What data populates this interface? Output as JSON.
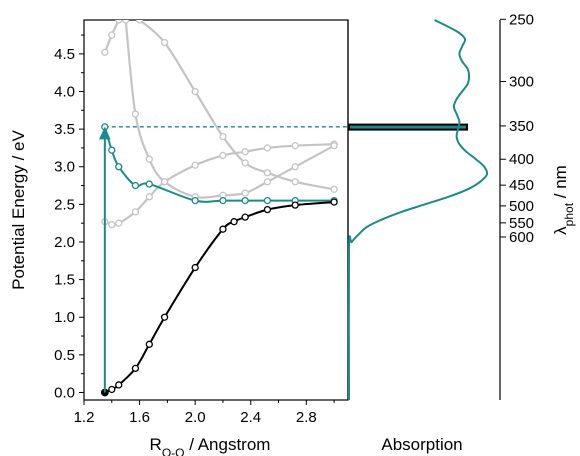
{
  "chart_data": [
    {
      "type": "line",
      "name_hidden": "",
      "xlabel_main": "R",
      "xlabel_sub": "O-O",
      "xlabel_rest": " / Angstrom",
      "ylabel": "Potential Energy / eV",
      "xlim": [
        1.2,
        3.1
      ],
      "ylim": [
        -0.1,
        4.95
      ],
      "x_ticks": [
        1.2,
        1.6,
        2.0,
        2.4,
        2.8
      ],
      "x_tick_labels": [
        "1.2",
        "1.6",
        "2.0",
        "2.4",
        "2.8"
      ],
      "y_ticks": [
        0.0,
        0.5,
        1.0,
        1.5,
        2.0,
        2.5,
        3.0,
        3.5,
        4.0,
        4.5
      ],
      "y_tick_labels": [
        "0.0",
        "0.5",
        "1.0",
        "1.5",
        "2.0",
        "2.5",
        "3.0",
        "3.5",
        "4.0",
        "4.5"
      ],
      "series": [
        {
          "color": "#000000",
          "x": [
            1.35,
            1.4,
            1.45,
            1.57,
            1.67,
            1.78,
            2.0,
            2.2,
            2.28,
            2.36,
            2.52,
            2.72,
            3.0
          ],
          "y": [
            0.0,
            0.04,
            0.1,
            0.32,
            0.64,
            1.0,
            1.66,
            2.17,
            2.27,
            2.33,
            2.43,
            2.49,
            2.53
          ]
        },
        {
          "color": "#1a8a8a",
          "x": [
            1.35,
            1.4,
            1.45,
            1.57,
            1.67,
            2.0,
            2.2,
            2.36,
            2.52,
            2.72,
            3.0
          ],
          "y": [
            3.53,
            3.22,
            3.0,
            2.75,
            2.77,
            2.55,
            2.55,
            2.55,
            2.55,
            2.55,
            2.55
          ]
        },
        {
          "color": "#c4c4c4",
          "x": [
            1.35,
            1.4,
            1.45,
            1.57,
            1.67,
            1.78,
            2.0,
            2.2,
            2.36,
            2.52,
            2.72,
            3.0
          ],
          "y": [
            2.27,
            2.23,
            2.25,
            2.4,
            2.6,
            2.8,
            3.02,
            3.15,
            3.2,
            3.25,
            3.28,
            3.3
          ]
        },
        {
          "color": "#c4c4c4",
          "x": [
            1.35,
            1.4,
            1.45
          ],
          "y": [
            4.52,
            4.75,
            4.95
          ]
        },
        {
          "color": "#c4c4c4",
          "x": [
            1.5,
            1.57,
            1.67,
            1.78,
            2.0,
            2.2,
            2.36,
            2.52,
            2.72,
            3.0
          ],
          "y": [
            4.95,
            3.7,
            3.1,
            2.8,
            2.6,
            2.62,
            2.65,
            2.8,
            3.0,
            3.28
          ]
        },
        {
          "color": "#c4c4c4",
          "x": [
            1.6,
            1.78,
            2.0,
            2.2,
            2.36,
            2.52,
            2.72,
            3.0
          ],
          "y": [
            4.95,
            4.65,
            4.0,
            3.4,
            3.05,
            2.92,
            2.8,
            2.7
          ]
        }
      ],
      "annotations": {
        "ground_state_point": {
          "x": 1.35,
          "y": 0.0
        },
        "vertical_excitation_arrow": {
          "x": 1.35,
          "from_y": 0.0,
          "to_y": 3.53,
          "color": "#1a8a8a"
        },
        "dashed_level": {
          "y": 3.53,
          "from_x": 1.35,
          "to_x": 3.1,
          "color": "#1a8a8a"
        }
      }
    },
    {
      "type": "line",
      "xlabel": "Absorption",
      "ylabel_main": "λ",
      "ylabel_sub": "phot",
      "ylabel_rest": " / nm",
      "right_ticks_nm": [
        250,
        300,
        350,
        400,
        450,
        500,
        550,
        600
      ],
      "right_tick_labels": [
        "250",
        "300",
        "350",
        "400",
        "450",
        "500",
        "550",
        "600"
      ],
      "line_color": "#1a8a8a",
      "energy_ev": [
        -0.1,
        1.9,
        2.0,
        2.1,
        2.2,
        2.3,
        2.4,
        2.5,
        2.6,
        2.7,
        2.8,
        2.9,
        3.0,
        3.1,
        3.2,
        3.3,
        3.4,
        3.5,
        3.6,
        3.7,
        3.8,
        3.9,
        4.0,
        4.1,
        4.2,
        4.3,
        4.4,
        4.5,
        4.6,
        4.7,
        4.8,
        4.95
      ],
      "absorbance": [
        0.0,
        0.0,
        0.02,
        0.07,
        0.13,
        0.24,
        0.38,
        0.55,
        0.72,
        0.86,
        0.95,
        1.0,
        0.98,
        0.92,
        0.85,
        0.8,
        0.78,
        0.79,
        0.8,
        0.78,
        0.76,
        0.78,
        0.82,
        0.86,
        0.87,
        0.86,
        0.82,
        0.8,
        0.82,
        0.84,
        0.78,
        0.62
      ],
      "highlight_band": {
        "y_ev": 3.53,
        "width": 0.06
      }
    }
  ]
}
